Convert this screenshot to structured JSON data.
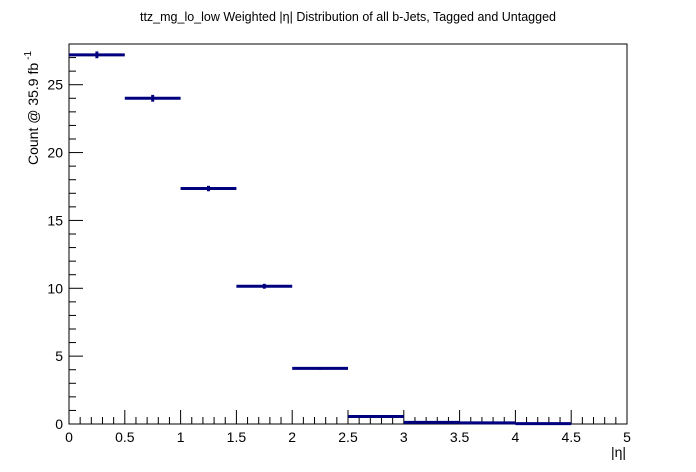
{
  "chart_data": {
    "type": "histogram",
    "title": "ttz_mg_lo_low Weighted |η| Distribution of all b-Jets, Tagged and Untagged",
    "xlabel": "|η|",
    "ylabel": "Count @ 35.9 fb",
    "ylabel_superscript": "-1",
    "xlim": [
      0,
      5
    ],
    "ylim": [
      0,
      28
    ],
    "x_ticks": [
      "0",
      "0.5",
      "1",
      "1.5",
      "2",
      "2.5",
      "3",
      "3.5",
      "4",
      "4.5",
      "5"
    ],
    "y_ticks": [
      "0",
      "5",
      "10",
      "15",
      "20",
      "25"
    ],
    "bins": [
      {
        "x_low": 0.0,
        "x_high": 0.5,
        "value": 27.2,
        "error": 0.25
      },
      {
        "x_low": 0.5,
        "x_high": 1.0,
        "value": 24.0,
        "error": 0.25
      },
      {
        "x_low": 1.0,
        "x_high": 1.5,
        "value": 17.35,
        "error": 0.2
      },
      {
        "x_low": 1.5,
        "x_high": 2.0,
        "value": 10.15,
        "error": 0.18
      },
      {
        "x_low": 2.0,
        "x_high": 2.5,
        "value": 4.1,
        "error": 0.1
      },
      {
        "x_low": 2.5,
        "x_high": 3.0,
        "value": 0.55,
        "error": 0.04
      },
      {
        "x_low": 3.0,
        "x_high": 3.5,
        "value": 0.12,
        "error": 0.02
      },
      {
        "x_low": 3.5,
        "x_high": 4.0,
        "value": 0.08,
        "error": 0.02
      },
      {
        "x_low": 4.0,
        "x_high": 4.5,
        "value": 0.03,
        "error": 0.01
      }
    ],
    "grid": false,
    "colors": {
      "marker": "#00007f",
      "axis": "#000000"
    }
  }
}
